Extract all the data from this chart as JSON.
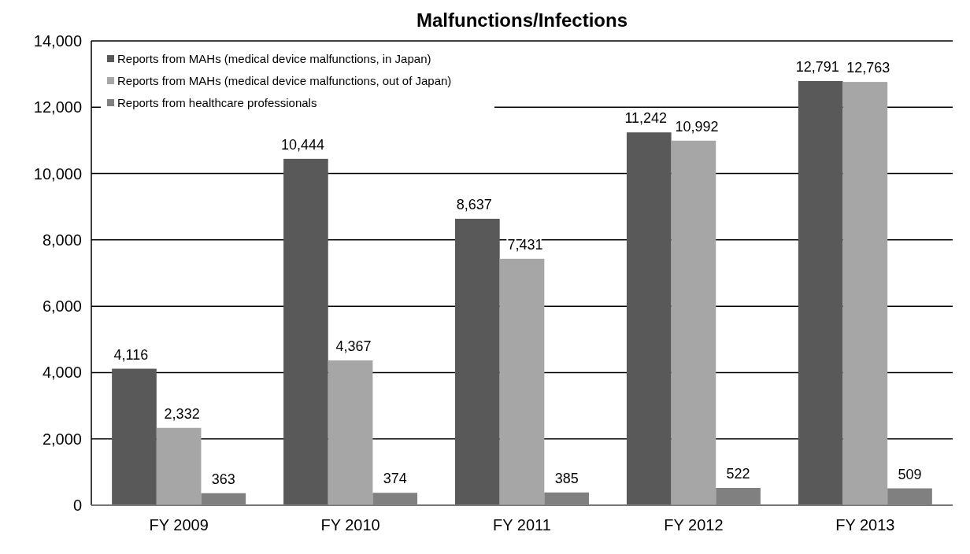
{
  "chart_data": {
    "type": "bar",
    "title": "Malfunctions/Infections",
    "categories": [
      "FY 2009",
      "FY 2010",
      "FY 2011",
      "FY 2012",
      "FY 2013"
    ],
    "series": [
      {
        "name": "Reports from MAHs (medical device malfunctions, in Japan)",
        "color": "#595959",
        "values": [
          4116,
          10444,
          8637,
          11242,
          12791
        ],
        "value_labels": [
          "4,116",
          "10,444",
          "8,637",
          "11,242",
          "12,791"
        ]
      },
      {
        "name": "Reports from MAHs (medical device malfunctions, out of Japan)",
        "color": "#a6a6a6",
        "values": [
          2332,
          4367,
          7431,
          10992,
          12763
        ],
        "value_labels": [
          "2,332",
          "4,367",
          "7,431",
          "10,992",
          "12,763"
        ]
      },
      {
        "name": "Reports from healthcare professionals",
        "color": "#808080",
        "values": [
          363,
          374,
          385,
          522,
          509
        ],
        "value_labels": [
          "363",
          "374",
          "385",
          "522",
          "509"
        ]
      }
    ],
    "ylim": [
      0,
      14000
    ],
    "yticks": [
      {
        "value": 0,
        "label": "0"
      },
      {
        "value": 2000,
        "label": "2,000"
      },
      {
        "value": 4000,
        "label": "4,000"
      },
      {
        "value": 6000,
        "label": "6,000"
      },
      {
        "value": 8000,
        "label": "8,000"
      },
      {
        "value": 10000,
        "label": "10,000"
      },
      {
        "value": 12000,
        "label": "12,000"
      },
      {
        "value": 14000,
        "label": "14,000"
      }
    ],
    "grid": "y",
    "legend": "top left"
  }
}
